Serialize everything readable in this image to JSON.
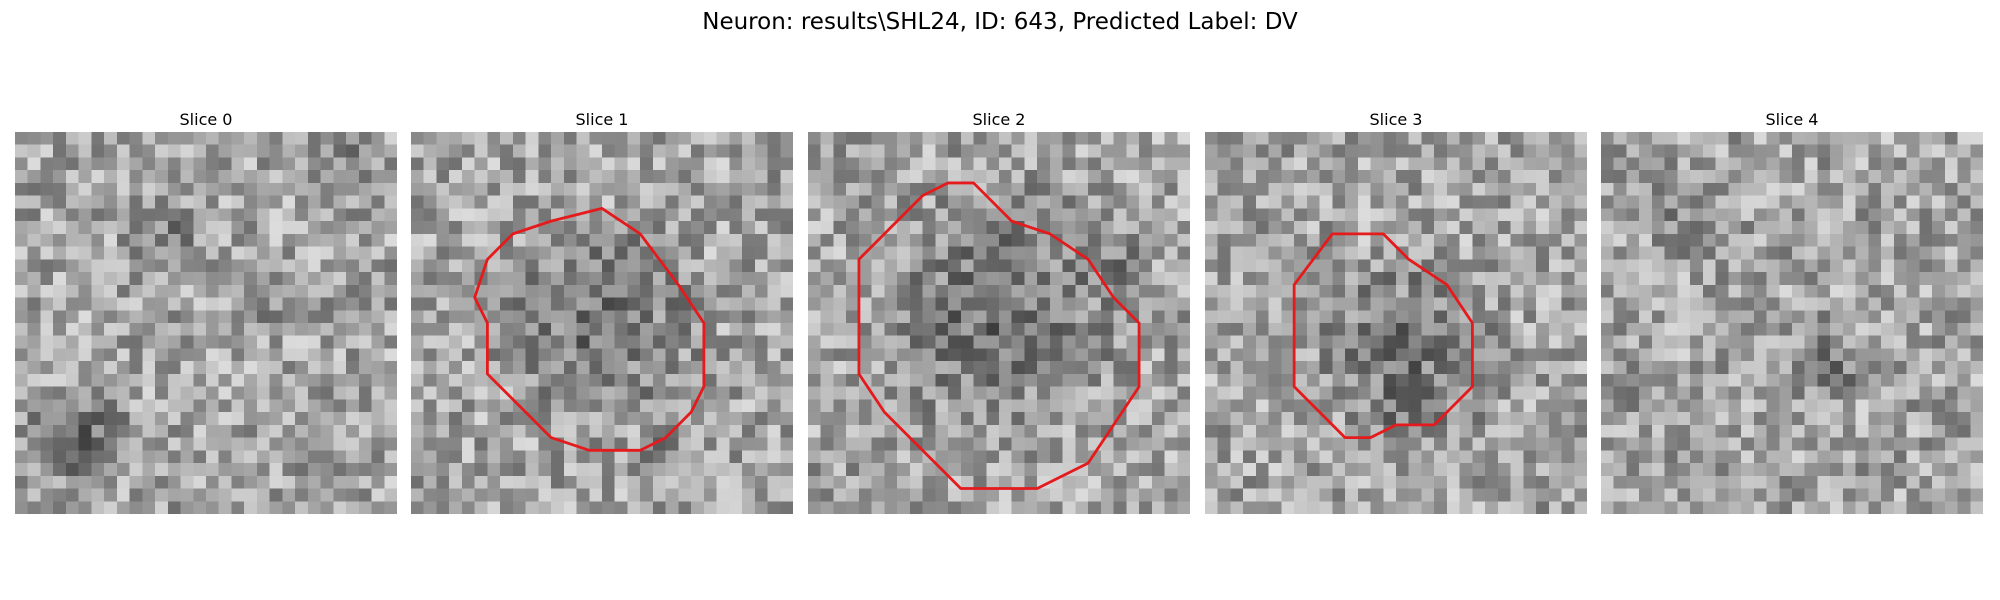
{
  "suptitle": "Neuron: results\\SHL24, ID: 643, Predicted Label: DV",
  "contour_color": "#e41a1c",
  "panels": [
    {
      "title": "Slice 0",
      "noise_seed": 11,
      "has_contour": false,
      "dark_regions": [
        {
          "cx": 5,
          "cy": 24,
          "r": 5,
          "strength": 80
        },
        {
          "cx": 12,
          "cy": 8,
          "r": 4,
          "strength": 40
        },
        {
          "cx": 20,
          "cy": 13,
          "r": 3,
          "strength": 40
        },
        {
          "cx": 26,
          "cy": 3,
          "r": 3,
          "strength": 45
        }
      ]
    },
    {
      "title": "Slice 1",
      "noise_seed": 23,
      "has_contour": true,
      "dark_regions": [
        {
          "cx": 15,
          "cy": 15,
          "r": 10,
          "strength": 55
        },
        {
          "cx": 20,
          "cy": 25,
          "r": 2,
          "strength": 55
        }
      ],
      "contour": [
        [
          15,
          6
        ],
        [
          18,
          8
        ],
        [
          21,
          12
        ],
        [
          23,
          15
        ],
        [
          23,
          20
        ],
        [
          22,
          22
        ],
        [
          20,
          24
        ],
        [
          18,
          25
        ],
        [
          14,
          25
        ],
        [
          11,
          24
        ],
        [
          9,
          22
        ],
        [
          6,
          19
        ],
        [
          6,
          15
        ],
        [
          5,
          13
        ],
        [
          6,
          10
        ],
        [
          8,
          8
        ],
        [
          11,
          7
        ]
      ]
    },
    {
      "title": "Slice 2",
      "noise_seed": 37,
      "has_contour": true,
      "dark_regions": [
        {
          "cx": 15,
          "cy": 14,
          "r": 12,
          "strength": 60
        },
        {
          "cx": 25,
          "cy": 11,
          "r": 3,
          "strength": 40
        }
      ],
      "contour": [
        [
          11,
          4
        ],
        [
          13,
          4
        ],
        [
          16,
          7
        ],
        [
          19,
          8
        ],
        [
          22,
          10
        ],
        [
          24,
          13
        ],
        [
          26,
          15
        ],
        [
          26,
          20
        ],
        [
          24,
          23
        ],
        [
          22,
          26
        ],
        [
          18,
          28
        ],
        [
          12,
          28
        ],
        [
          9,
          25
        ],
        [
          6,
          22
        ],
        [
          4,
          19
        ],
        [
          4,
          10
        ],
        [
          6,
          8
        ],
        [
          9,
          5
        ]
      ]
    },
    {
      "title": "Slice 3",
      "noise_seed": 53,
      "has_contour": true,
      "dark_regions": [
        {
          "cx": 16,
          "cy": 17,
          "r": 9,
          "strength": 55
        },
        {
          "cx": 16,
          "cy": 22,
          "r": 3,
          "strength": 35
        }
      ],
      "contour": [
        [
          10,
          8
        ],
        [
          14,
          8
        ],
        [
          16,
          10
        ],
        [
          19,
          12
        ],
        [
          21,
          15
        ],
        [
          21,
          20
        ],
        [
          19,
          22
        ],
        [
          18,
          23
        ],
        [
          15,
          23
        ],
        [
          13,
          24
        ],
        [
          11,
          24
        ],
        [
          9,
          22
        ],
        [
          7,
          20
        ],
        [
          7,
          12
        ]
      ]
    },
    {
      "title": "Slice 4",
      "noise_seed": 71,
      "has_contour": false,
      "dark_regions": [
        {
          "cx": 18,
          "cy": 18,
          "r": 4,
          "strength": 50
        },
        {
          "cx": 7,
          "cy": 7,
          "r": 4,
          "strength": 30
        },
        {
          "cx": 3,
          "cy": 21,
          "r": 4,
          "strength": 30
        }
      ]
    }
  ]
}
